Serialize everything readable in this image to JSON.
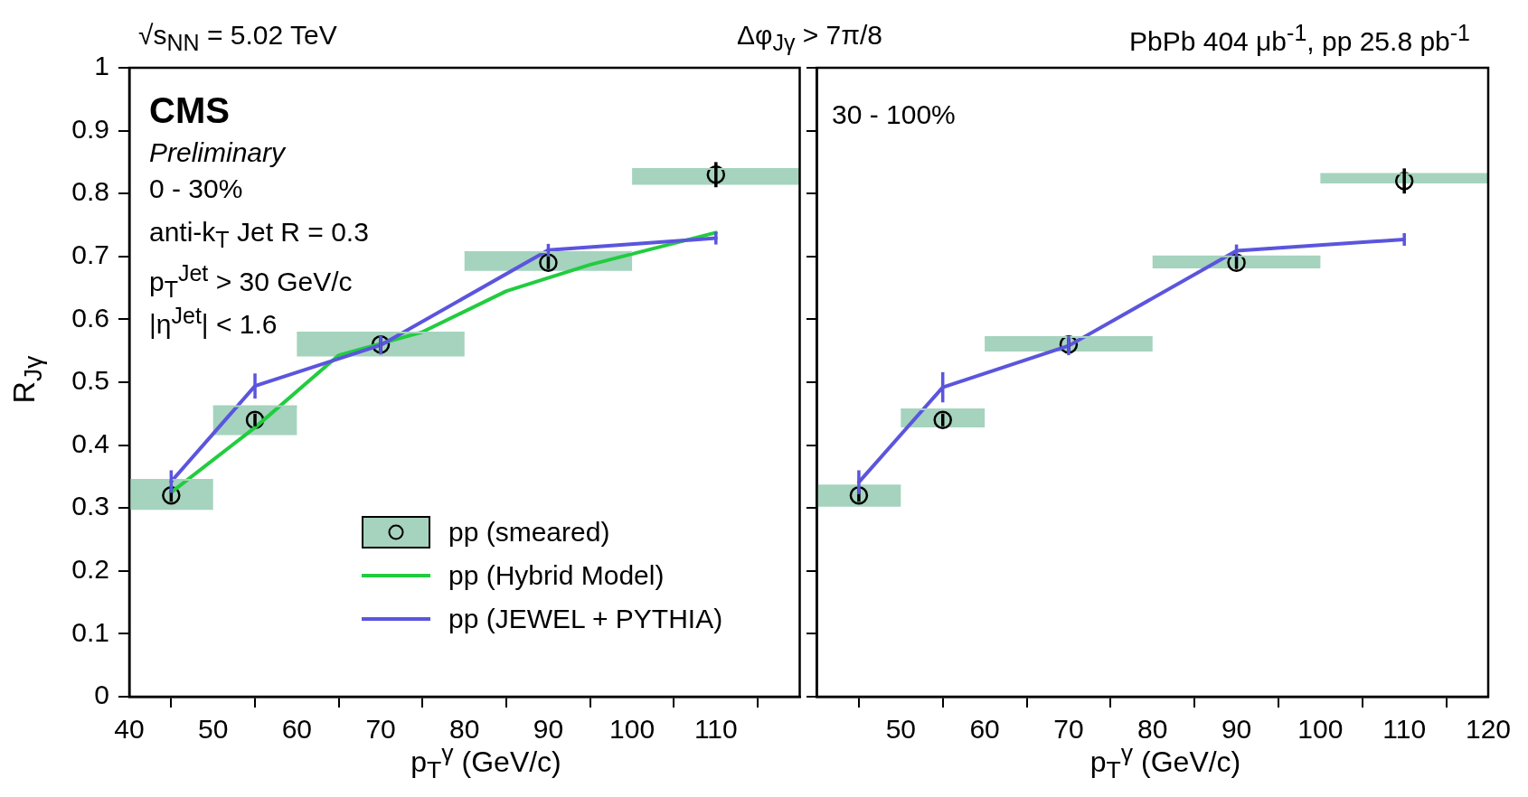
{
  "chart_data": [
    {
      "type": "scatter",
      "title": "√s$_{NN}$ = 5.02 TeV",
      "subtitle": "Δφ$_{Jγ}$ > 7π/8",
      "xlabel": "p$_{T}$$^{γ}$ (GeV/c)",
      "ylabel": "R$_{Jγ}$",
      "annotations": [
        "CMS",
        "Preliminary",
        "0 - 30%",
        "anti-k$_{T}$ Jet R = 0.3",
        "p$_{T}$$^{Jet}$ > 30 GeV/c",
        "|η$^{Jet}$| < 1.6"
      ],
      "xlim": [
        40,
        120
      ],
      "xticks": [
        40,
        50,
        60,
        70,
        80,
        90,
        100,
        110,
        {
          "value": 120,
          "label": null
        }
      ],
      "ylim": [
        0,
        1
      ],
      "yticks": [
        0,
        0.1,
        0.2,
        0.3,
        0.4,
        0.5,
        0.6,
        0.7,
        0.8,
        0.9,
        1
      ],
      "legend": "bottom",
      "series": [
        {
          "type": "bar",
          "color": "#a5d3be",
          "x": [
            45,
            55,
            70,
            90,
            110
          ],
          "base": [
            0.297,
            0.416,
            0.541,
            0.677,
            0.814
          ],
          "values": [
            0.048,
            0.046,
            0.038,
            0.03,
            0.025
          ],
          "xerrors": [
            [
              40,
              50
            ],
            [
              50,
              60
            ],
            [
              60,
              80
            ],
            [
              80,
              100
            ],
            [
              100,
              120
            ]
          ]
        },
        {
          "name": "pp (smeared)",
          "color": "#000000",
          "marker": "circle",
          "x": [
            45,
            55,
            70,
            90,
            110
          ],
          "values": [
            0.32,
            0.44,
            0.56,
            0.69,
            0.83
          ],
          "errors": [
            0.01,
            0.01,
            0.01,
            0.01,
            0.02
          ]
        },
        {
          "name": "pp (Hybrid Model)",
          "type": "line",
          "color": "#22cc3f",
          "marker": "none",
          "x": [
            45,
            55,
            65,
            75,
            85,
            95,
            110
          ],
          "values": [
            0.325,
            0.428,
            0.543,
            0.58,
            0.645,
            0.687,
            0.738
          ]
        },
        {
          "name": "pp (JEWEL + PYTHIA)",
          "type": "line",
          "color": "#5b55dd",
          "marker": "none",
          "x": [
            45,
            55,
            70,
            90,
            110
          ],
          "values": [
            0.342,
            0.494,
            0.559,
            0.71,
            0.729
          ],
          "errors": [
            0.018,
            0.02,
            0.015,
            0.01,
            0.01
          ]
        }
      ]
    },
    {
      "type": "scatter",
      "title": "PbPb 404 μb$^{-1}$, pp 25.8 pb$^{-1}$",
      "xlabel": "p$_{T}$$^{γ}$ (GeV/c)",
      "annotations": [
        "30 - 100%"
      ],
      "xlim": [
        40,
        120
      ],
      "xticks": [
        {
          "value": 40,
          "label": null
        },
        50,
        60,
        70,
        80,
        90,
        100,
        110,
        120
      ],
      "ylim": [
        0,
        1
      ],
      "yticks": [
        0,
        0.1,
        0.2,
        0.3,
        0.4,
        0.5,
        0.6,
        0.7,
        0.8,
        0.9,
        1
      ],
      "tick_labels": "x",
      "series": [
        {
          "type": "bar",
          "color": "#a5d3be",
          "x": [
            45,
            55,
            70,
            90,
            110
          ],
          "base": [
            0.302,
            0.428,
            0.549,
            0.681,
            0.816
          ],
          "values": [
            0.034,
            0.029,
            0.023,
            0.019,
            0.015
          ],
          "xerrors": [
            [
              40,
              50
            ],
            [
              50,
              60
            ],
            [
              60,
              80
            ],
            [
              80,
              100
            ],
            [
              100,
              120
            ]
          ]
        },
        {
          "color": "#000000",
          "marker": "circle",
          "x": [
            45,
            55,
            70,
            90,
            110
          ],
          "values": [
            0.32,
            0.44,
            0.56,
            0.69,
            0.82
          ],
          "errors": [
            0.01,
            0.01,
            0.01,
            0.01,
            0.02
          ]
        },
        {
          "type": "line",
          "color": "#5b55dd",
          "marker": "none",
          "x": [
            45,
            55,
            70,
            90,
            110
          ],
          "values": [
            0.341,
            0.492,
            0.558,
            0.709,
            0.727
          ],
          "errors": [
            0.019,
            0.024,
            0.015,
            0.01,
            0.01
          ]
        }
      ]
    }
  ]
}
